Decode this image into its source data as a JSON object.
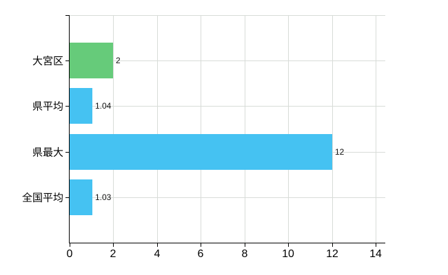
{
  "chart_data": {
    "type": "bar",
    "orientation": "horizontal",
    "categories": [
      "大宮区",
      "県平均",
      "県最大",
      "全国平均"
    ],
    "values": [
      2,
      1.04,
      12,
      1.03
    ],
    "value_labels": [
      "2",
      "1.04",
      "12",
      "1.03"
    ],
    "bar_colors": [
      "#66CB7A",
      "#45C2F2",
      "#45C2F2",
      "#45C2F2"
    ],
    "xlim": [
      0,
      14
    ],
    "xticks": [
      0,
      2,
      4,
      6,
      8,
      10,
      12,
      14
    ],
    "grid": true,
    "legend": false,
    "colors": {
      "green_bar": "#66CB7A",
      "blue_bar": "#45C2F2",
      "gridline": "#D8DCD8",
      "axis": "#000000",
      "background": "#FFFFFF",
      "text": "#000000"
    }
  }
}
